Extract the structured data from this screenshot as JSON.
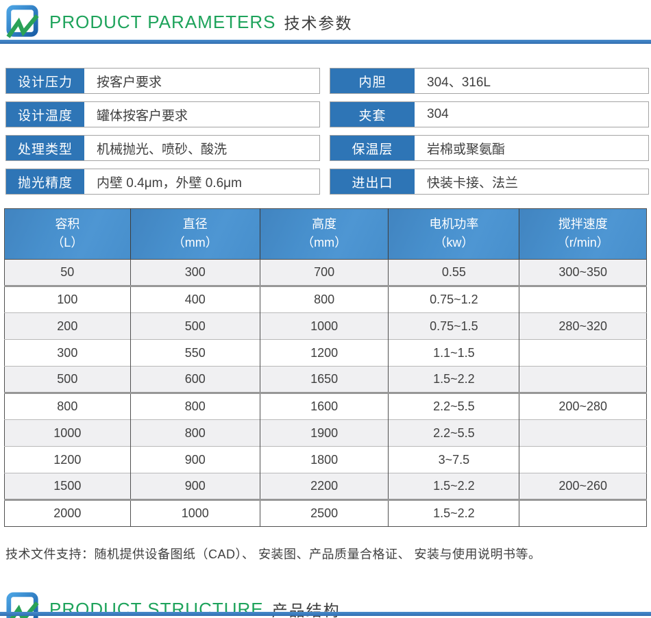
{
  "colors": {
    "accent_label_blue": "#2e75b6",
    "table_header_blue": "#478fcc",
    "divider_blue": "#3a7cbf",
    "brand_green": "#1ea35b",
    "stripe_gray": "#f0f0f2",
    "text_dark": "#3f3f3f"
  },
  "logo_icon": "blue-rounded-square-with-green-zigzag",
  "header_parameters": {
    "title_en": "PRODUCT PARAMETERS",
    "title_zh": "技术参数"
  },
  "header_structure": {
    "title_en": "PRODUCT STRUCTURE",
    "title_zh": "产品结构"
  },
  "params": {
    "left": [
      {
        "label": "设计压力",
        "value": "按客户要求"
      },
      {
        "label": "设计温度",
        "value": "罐体按客户要求"
      },
      {
        "label": "处理类型",
        "value": "机械抛光、喷砂、酸洗"
      },
      {
        "label": "抛光精度",
        "value": "内壁 0.4μm，外壁 0.6μm"
      }
    ],
    "right": [
      {
        "label": "内胆",
        "value": "304、316L"
      },
      {
        "label": "夹套",
        "value": "304"
      },
      {
        "label": "保温层",
        "value": "岩棉或聚氨酯"
      },
      {
        "label": "进出口",
        "value": "快装卡接、法兰"
      }
    ]
  },
  "table": {
    "headers": [
      {
        "line1": "容积",
        "line2": "（L）"
      },
      {
        "line1": "直径",
        "line2": "（mm）"
      },
      {
        "line1": "高度",
        "line2": "（mm）"
      },
      {
        "line1": "电机功率",
        "line2": "（kw）"
      },
      {
        "line1": "搅拌速度",
        "line2": "（r/min）"
      }
    ],
    "rows": [
      {
        "volume": "50",
        "diameter": "300",
        "height": "700",
        "power": "0.55",
        "speed": "300~350"
      },
      {
        "volume": "100",
        "diameter": "400",
        "height": "800",
        "power": "0.75~1.2",
        "speed": ""
      },
      {
        "volume": "200",
        "diameter": "500",
        "height": "1000",
        "power": "0.75~1.5",
        "speed": "280~320"
      },
      {
        "volume": "300",
        "diameter": "550",
        "height": "1200",
        "power": "1.1~1.5",
        "speed": ""
      },
      {
        "volume": "500",
        "diameter": "600",
        "height": "1650",
        "power": "1.5~2.2",
        "speed": ""
      },
      {
        "volume": "800",
        "diameter": "800",
        "height": "1600",
        "power": "2.2~5.5",
        "speed": "200~280"
      },
      {
        "volume": "1000",
        "diameter": "800",
        "height": "1900",
        "power": "2.2~5.5",
        "speed": ""
      },
      {
        "volume": "1200",
        "diameter": "900",
        "height": "1800",
        "power": "3~7.5",
        "speed": ""
      },
      {
        "volume": "1500",
        "diameter": "900",
        "height": "2200",
        "power": "1.5~2.2",
        "speed": "200~260"
      },
      {
        "volume": "2000",
        "diameter": "1000",
        "height": "2500",
        "power": "1.5~2.2",
        "speed": ""
      }
    ],
    "group_break_after_row_index": [
      0,
      4,
      8
    ],
    "striped_row_indexes": [
      0,
      2,
      4,
      6,
      8
    ]
  },
  "footer_note": "技术文件支持：随机提供设备图纸（CAD）、 安装图、产品质量合格证、 安装与使用说明书等。"
}
